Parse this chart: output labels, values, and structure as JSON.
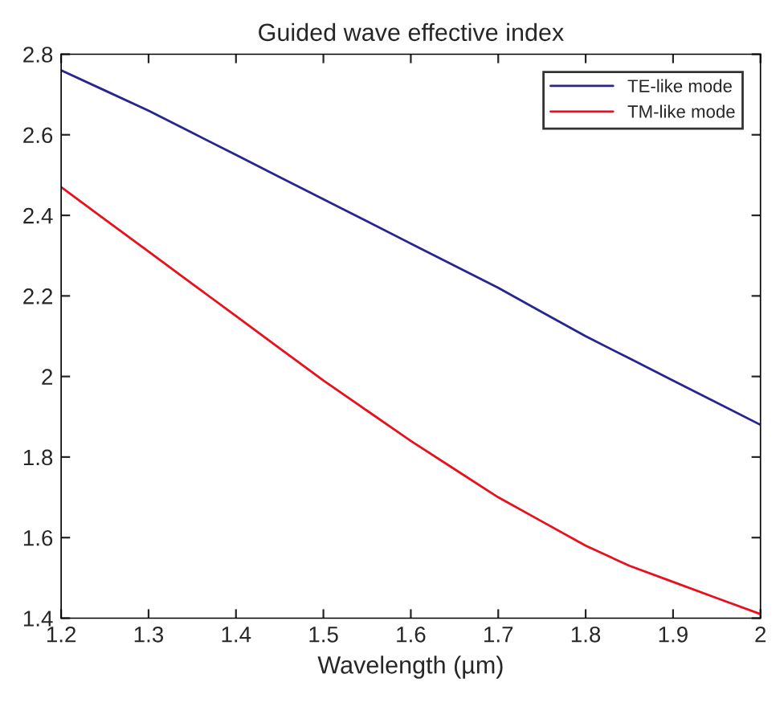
{
  "chart_data": {
    "type": "line",
    "title": "Guided wave effective index",
    "xlabel": "Wavelength (µm)",
    "x": [
      1.2,
      1.25,
      1.3,
      1.35,
      1.4,
      1.45,
      1.5,
      1.55,
      1.6,
      1.65,
      1.7,
      1.75,
      1.8,
      1.85,
      1.9,
      1.95,
      2.0
    ],
    "series": [
      {
        "name": "TE-like mode",
        "color": "#262693",
        "values": [
          2.76,
          2.71,
          2.66,
          2.605,
          2.55,
          2.495,
          2.44,
          2.385,
          2.33,
          2.275,
          2.22,
          2.16,
          2.1,
          2.045,
          1.99,
          1.935,
          1.88
        ]
      },
      {
        "name": "TM-like mode",
        "color": "#e8101c",
        "values": [
          2.47,
          2.39,
          2.31,
          2.23,
          2.15,
          2.07,
          1.99,
          1.915,
          1.84,
          1.77,
          1.7,
          1.64,
          1.58,
          1.53,
          1.49,
          1.45,
          1.41
        ]
      }
    ],
    "xlim": [
      1.2,
      2.0
    ],
    "ylim": [
      1.4,
      2.8
    ],
    "xticks": [
      1.2,
      1.3,
      1.4,
      1.5,
      1.6,
      1.7,
      1.8,
      1.9,
      2
    ],
    "yticks": [
      1.4,
      1.6,
      1.8,
      2,
      2.2,
      2.4,
      2.6,
      2.8
    ],
    "grid": false,
    "legend": "top right",
    "line_style": "solid",
    "marker": "none"
  }
}
